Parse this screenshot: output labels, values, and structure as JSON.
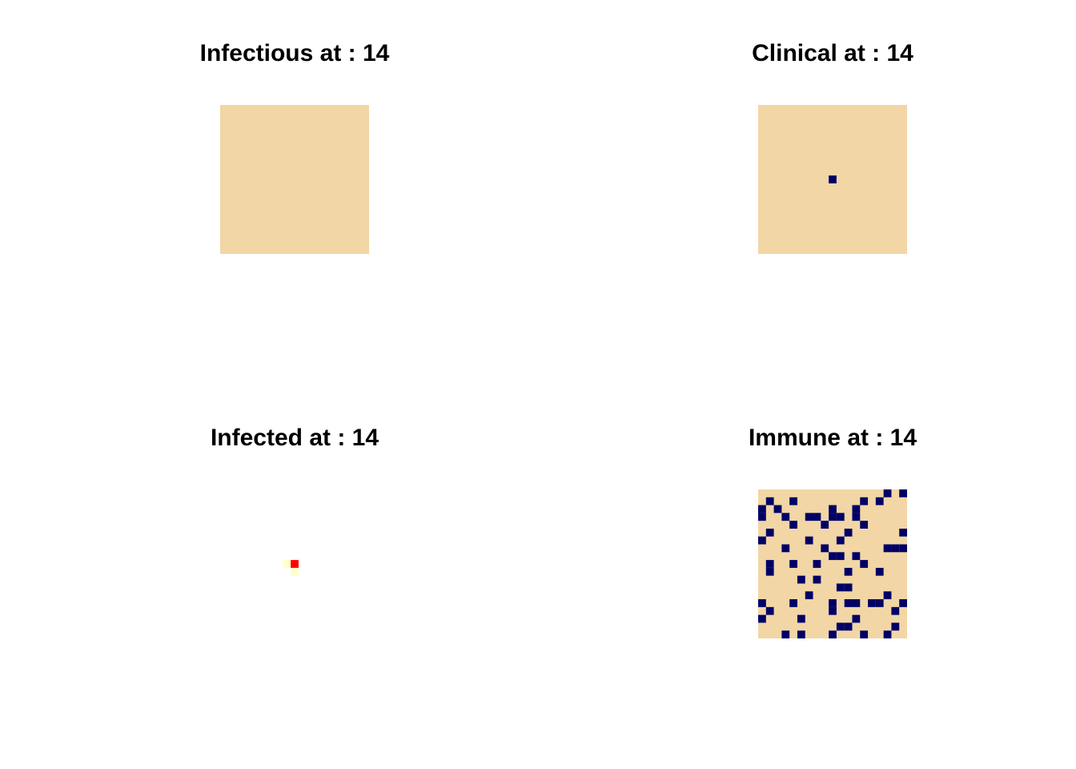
{
  "colors": {
    "background": "#F2D6A5",
    "marked": "#000066",
    "infected_high": "#FF0000",
    "infected_low": "#FFFFCC"
  },
  "chart_data": [
    {
      "type": "heatmap",
      "title": "Infectious at : 14",
      "grid_size": [
        19,
        19
      ],
      "cells": []
    },
    {
      "type": "heatmap",
      "title": "Clinical at : 14",
      "grid_size": [
        19,
        19
      ],
      "cells": [
        [
          9,
          9
        ]
      ]
    },
    {
      "type": "heatmap",
      "title": "Infected at : 14",
      "grid_size": [
        19,
        19
      ],
      "hot_cells": [
        [
          9,
          9
        ]
      ],
      "warm_cells": [
        [
          8,
          9
        ],
        [
          9,
          10
        ]
      ]
    },
    {
      "type": "heatmap",
      "title": "Immune at : 14",
      "grid_size": [
        19,
        19
      ],
      "cells": [
        [
          16,
          0
        ],
        [
          18,
          0
        ],
        [
          1,
          1
        ],
        [
          4,
          1
        ],
        [
          13,
          1
        ],
        [
          15,
          1
        ],
        [
          0,
          2
        ],
        [
          2,
          2
        ],
        [
          9,
          2
        ],
        [
          12,
          2
        ],
        [
          0,
          3
        ],
        [
          3,
          3
        ],
        [
          6,
          3
        ],
        [
          7,
          3
        ],
        [
          9,
          3
        ],
        [
          10,
          3
        ],
        [
          12,
          3
        ],
        [
          4,
          4
        ],
        [
          8,
          4
        ],
        [
          13,
          4
        ],
        [
          1,
          5
        ],
        [
          11,
          5
        ],
        [
          18,
          5
        ],
        [
          0,
          6
        ],
        [
          6,
          6
        ],
        [
          10,
          6
        ],
        [
          3,
          7
        ],
        [
          8,
          7
        ],
        [
          16,
          7
        ],
        [
          17,
          7
        ],
        [
          18,
          7
        ],
        [
          9,
          8
        ],
        [
          10,
          8
        ],
        [
          12,
          8
        ],
        [
          1,
          9
        ],
        [
          4,
          9
        ],
        [
          7,
          9
        ],
        [
          13,
          9
        ],
        [
          1,
          10
        ],
        [
          11,
          10
        ],
        [
          15,
          10
        ],
        [
          5,
          11
        ],
        [
          7,
          11
        ],
        [
          10,
          12
        ],
        [
          11,
          12
        ],
        [
          6,
          13
        ],
        [
          16,
          13
        ],
        [
          0,
          14
        ],
        [
          4,
          14
        ],
        [
          9,
          14
        ],
        [
          11,
          14
        ],
        [
          12,
          14
        ],
        [
          14,
          14
        ],
        [
          15,
          14
        ],
        [
          18,
          14
        ],
        [
          1,
          15
        ],
        [
          9,
          15
        ],
        [
          17,
          15
        ],
        [
          0,
          16
        ],
        [
          5,
          16
        ],
        [
          12,
          16
        ],
        [
          10,
          17
        ],
        [
          11,
          17
        ],
        [
          17,
          17
        ],
        [
          3,
          18
        ],
        [
          5,
          18
        ],
        [
          9,
          18
        ],
        [
          13,
          18
        ],
        [
          16,
          18
        ]
      ]
    }
  ]
}
